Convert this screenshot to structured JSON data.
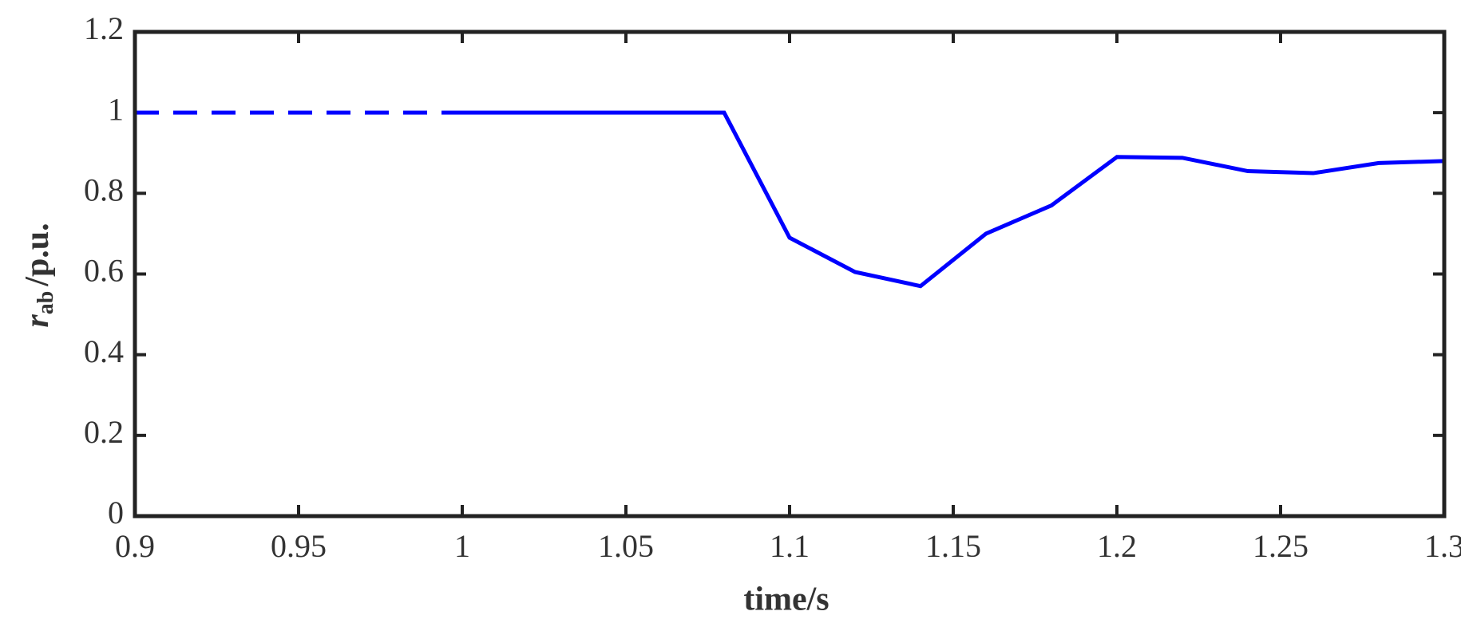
{
  "chart_data": {
    "type": "line",
    "x_label": "time/s",
    "y_label": {
      "symbol": "r",
      "subscript": "ab",
      "unit": "/p.u."
    },
    "series": [
      {
        "color": "#0000ff",
        "style": "dashed",
        "x": [
          0.9,
          1.0
        ],
        "values": [
          1.0,
          1.0
        ]
      },
      {
        "color": "#0000ff",
        "style": "solid",
        "x": [
          1.0,
          1.08,
          1.1,
          1.12,
          1.14,
          1.16,
          1.18,
          1.2,
          1.22,
          1.24,
          1.26,
          1.28,
          1.3
        ],
        "values": [
          1.0,
          1.0,
          0.69,
          0.605,
          0.57,
          0.7,
          0.77,
          0.89,
          0.888,
          0.855,
          0.85,
          0.875,
          0.88
        ]
      }
    ],
    "xlim": [
      0.9,
      1.3
    ],
    "xticks": [
      0.9,
      0.95,
      1,
      1.05,
      1.1,
      1.15,
      1.2,
      1.25,
      1.3
    ],
    "ylim": [
      0,
      1.2
    ],
    "yticks": [
      0,
      0.2,
      0.4,
      0.6,
      0.8,
      1,
      1.2
    ],
    "grid": false
  }
}
